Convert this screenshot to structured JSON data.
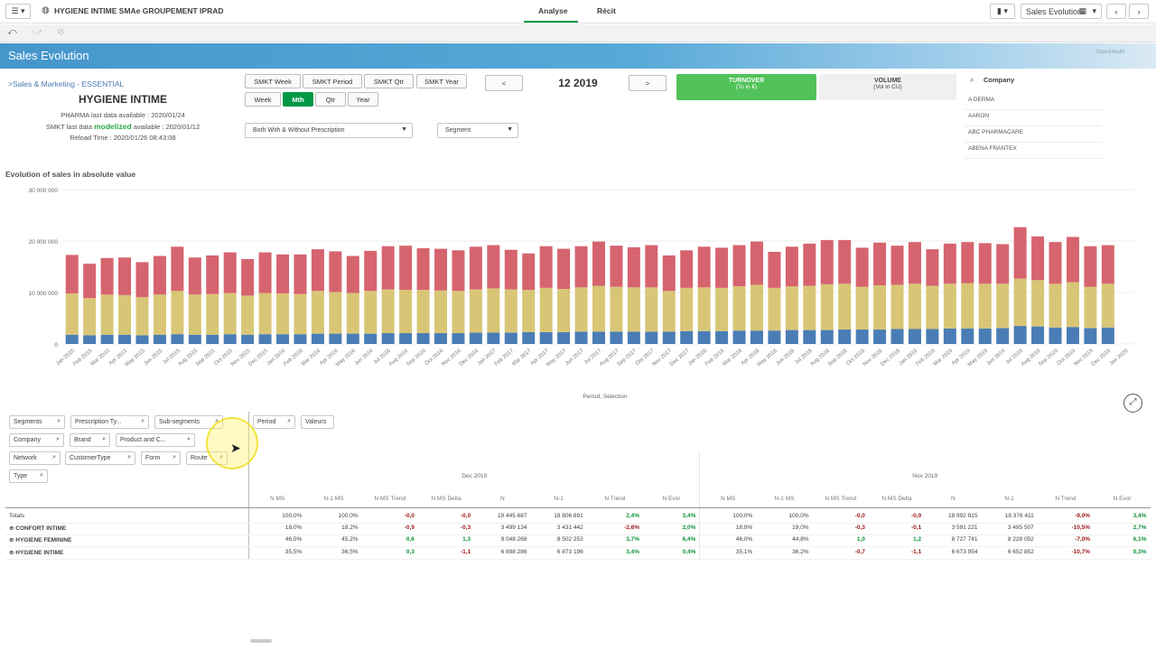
{
  "app": {
    "title": "HYGIENE INTIME SMAe GROUPEMENT IPRAD",
    "tabs": [
      "Analyse",
      "Récit"
    ],
    "sheet_selector": "Sales Evolution",
    "sheet_title": "Sales Evolution",
    "logo_text": "OpenHealth"
  },
  "info": {
    "breadcrumb": ">Sales & Marketing - ESSENTIAL",
    "heading": "HYGIENE INTIME",
    "pharma_label": "PHARMA last data available : 2020/01/24",
    "smkt_prefix": "SMKT last data ",
    "smkt_highlight": "modelized",
    "smkt_suffix": " available : 2020/01/12",
    "reload": "Reload Time : 2020/01/26 08:43:08"
  },
  "period_buttons": {
    "smkt_week": "SMKT Week",
    "smkt_period": "SMKT Period",
    "smkt_qtr": "SMKT Qtr",
    "smkt_year": "SMKT Year",
    "week": "Week",
    "mth": "Mth",
    "qtr": "Qtr",
    "year": "Year",
    "prev": "<",
    "next": ">",
    "current_period": "12 2019"
  },
  "dropdowns": {
    "prescription": "Both With & Without Prescription",
    "segment": "Segment"
  },
  "kpis": {
    "turnover_label": "TURNOVER",
    "turnover_sub": "(To in €)",
    "volume_label": "VOLUME",
    "volume_sub": "(Vol in CU)",
    "turnover_color": "#52c35a",
    "volume_color": "#f0f0f0"
  },
  "company_panel": {
    "header": "Company",
    "items": [
      "A DERMA",
      "AARON",
      "ABC PHARMACARE",
      "ABENA FRANTEX"
    ]
  },
  "chart_title": "Evolution of sales in absolute value",
  "chart_data": {
    "type": "bar",
    "stacked": true,
    "ylim": [
      0,
      30000000
    ],
    "yticks": [
      "0",
      "10 000 000",
      "20 000 000",
      "30 000 000"
    ],
    "ylabel": "",
    "xlabel": "Period, Selection",
    "categories": [
      "Jan 2015",
      "Feb 2015",
      "Mar 2015",
      "Apr 2015",
      "May 2015",
      "Jun 2015",
      "Jul 2015",
      "Aug 2015",
      "Sep 2015",
      "Oct 2015",
      "Nov 2015",
      "Dec 2015",
      "Jan 2016",
      "Feb 2016",
      "Mar 2016",
      "Apr 2016",
      "May 2016",
      "Jun 2016",
      "Jul 2016",
      "Aug 2016",
      "Sep 2016",
      "Oct 2016",
      "Nov 2016",
      "Dec 2016",
      "Jan 2017",
      "Feb 2017",
      "Mar 2017",
      "Apr 2017",
      "May 2017",
      "Jun 2017",
      "Jul 2017",
      "Aug 2017",
      "Sep 2017",
      "Oct 2017",
      "Nov 2017",
      "Dec 2017",
      "Jan 2018",
      "Feb 2018",
      "Mar 2018",
      "Apr 2018",
      "May 2018",
      "Jun 2018",
      "Jul 2018",
      "Aug 2018",
      "Sep 2018",
      "Oct 2018",
      "Nov 2018",
      "Dec 2018",
      "Jan 2019",
      "Feb 2019",
      "Mar 2019",
      "Apr 2019",
      "May 2019",
      "Jun 2019",
      "Jul 2019",
      "Aug 2019",
      "Sep 2019",
      "Oct 2019",
      "Nov 2019",
      "Dec 2019",
      "Jan 2020"
    ],
    "series": [
      {
        "color": "#4a7db5",
        "values": [
          1.8,
          1.7,
          1.8,
          1.8,
          1.7,
          1.8,
          1.9,
          1.8,
          1.8,
          1.9,
          1.8,
          1.9,
          1.9,
          1.9,
          2.0,
          2.0,
          2.0,
          2.0,
          2.1,
          2.1,
          2.1,
          2.1,
          2.1,
          2.2,
          2.2,
          2.2,
          2.3,
          2.3,
          2.3,
          2.4,
          2.4,
          2.4,
          2.4,
          2.4,
          2.4,
          2.5,
          2.5,
          2.5,
          2.6,
          2.6,
          2.6,
          2.7,
          2.7,
          2.7,
          2.8,
          2.8,
          2.8,
          2.9,
          2.9,
          2.9,
          3.0,
          3.0,
          3.0,
          3.1,
          3.5,
          3.4,
          3.2,
          3.3,
          3.1,
          3.2,
          0
        ]
      },
      {
        "color": "#d8c676",
        "values": [
          8.0,
          7.2,
          7.8,
          7.7,
          7.4,
          7.8,
          8.4,
          7.8,
          7.9,
          8.0,
          7.6,
          8.0,
          7.9,
          7.8,
          8.3,
          8.1,
          7.9,
          8.3,
          8.5,
          8.4,
          8.4,
          8.3,
          8.2,
          8.4,
          8.6,
          8.4,
          8.2,
          8.6,
          8.4,
          8.6,
          8.9,
          8.7,
          8.6,
          8.6,
          7.9,
          8.4,
          8.5,
          8.4,
          8.6,
          8.9,
          8.3,
          8.5,
          8.6,
          8.9,
          8.9,
          8.3,
          8.6,
          8.6,
          8.8,
          8.4,
          8.7,
          8.8,
          8.7,
          8.6,
          9.2,
          9.0,
          8.5,
          8.7,
          8.0,
          8.5,
          0
        ]
      },
      {
        "color": "#d6646f",
        "values": [
          7.5,
          6.7,
          7.1,
          7.3,
          6.8,
          7.5,
          8.6,
          7.2,
          7.5,
          7.9,
          7.1,
          7.9,
          7.6,
          7.7,
          8.1,
          7.9,
          7.2,
          7.8,
          8.4,
          8.6,
          8.1,
          8.1,
          7.9,
          8.3,
          8.4,
          7.7,
          7.1,
          8.1,
          7.8,
          8.0,
          8.6,
          8.0,
          7.8,
          8.2,
          6.9,
          7.3,
          7.9,
          7.8,
          8.0,
          8.4,
          7.0,
          7.7,
          8.2,
          8.6,
          8.5,
          7.6,
          8.3,
          7.6,
          8.1,
          7.1,
          7.8,
          8.0,
          7.9,
          7.7,
          10.0,
          8.5,
          8.1,
          8.8,
          7.9,
          7.5,
          0
        ]
      }
    ]
  },
  "filters": {
    "segments": "Segments",
    "prescription_type": "Prescription Ty...",
    "sub_segments": "Sub-segments",
    "period": "Period",
    "valeurs": "Valeurs",
    "company": "Company",
    "brand": "Brand",
    "product": "Product and C...",
    "network": "Network",
    "customer_type": "CustomerType",
    "form": "Form",
    "route": "Route",
    "type": "Type"
  },
  "table": {
    "months": [
      "Dec 2019",
      "Nov 2019"
    ],
    "columns": [
      "N MS",
      "N-1 MS",
      "N MS Trend",
      "N MS Delta",
      "N",
      "N-1",
      "N Trend",
      "N Evol"
    ],
    "rows": [
      {
        "label": "Totals",
        "expand": false,
        "dec": [
          "100,0%",
          "100,0%",
          "-0,0",
          "-0,0",
          "19 445 687",
          "18 806 891",
          "2,4%",
          "3,4%"
        ],
        "nov": [
          "100,0%",
          "100,0%",
          "-0,0",
          "-0,0",
          "18 992 915",
          "18 376 411",
          "-9,0%",
          "3,4%"
        ]
      },
      {
        "label": "CONFORT INTIME",
        "expand": true,
        "dec": [
          "18,0%",
          "18,2%",
          "-0,9",
          "-0,3",
          "3 499 134",
          "3 431 442",
          "-2,6%",
          "2,0%"
        ],
        "nov": [
          "18,9%",
          "19,0%",
          "-0,3",
          "-0,1",
          "3 591 221",
          "3 495 507",
          "-10,5%",
          "2,7%"
        ]
      },
      {
        "label": "HYGIENE FEMININE",
        "expand": true,
        "dec": [
          "46,5%",
          "45,2%",
          "0,6",
          "1,3",
          "9 048 268",
          "8 502 253",
          "3,7%",
          "6,4%"
        ],
        "nov": [
          "46,0%",
          "44,8%",
          "1,0",
          "1,2",
          "8 727 741",
          "8 228 052",
          "-7,0%",
          "6,1%"
        ]
      },
      {
        "label": "HYGIENE INTIME",
        "expand": true,
        "dec": [
          "35,5%",
          "36,5%",
          "0,3",
          "-1,1",
          "6 898 286",
          "6 873 196",
          "3,4%",
          "0,4%"
        ],
        "nov": [
          "35,1%",
          "36,2%",
          "-0,7",
          "-1,1",
          "6 673 954",
          "6 652 852",
          "-10,7%",
          "0,3%"
        ]
      }
    ]
  }
}
